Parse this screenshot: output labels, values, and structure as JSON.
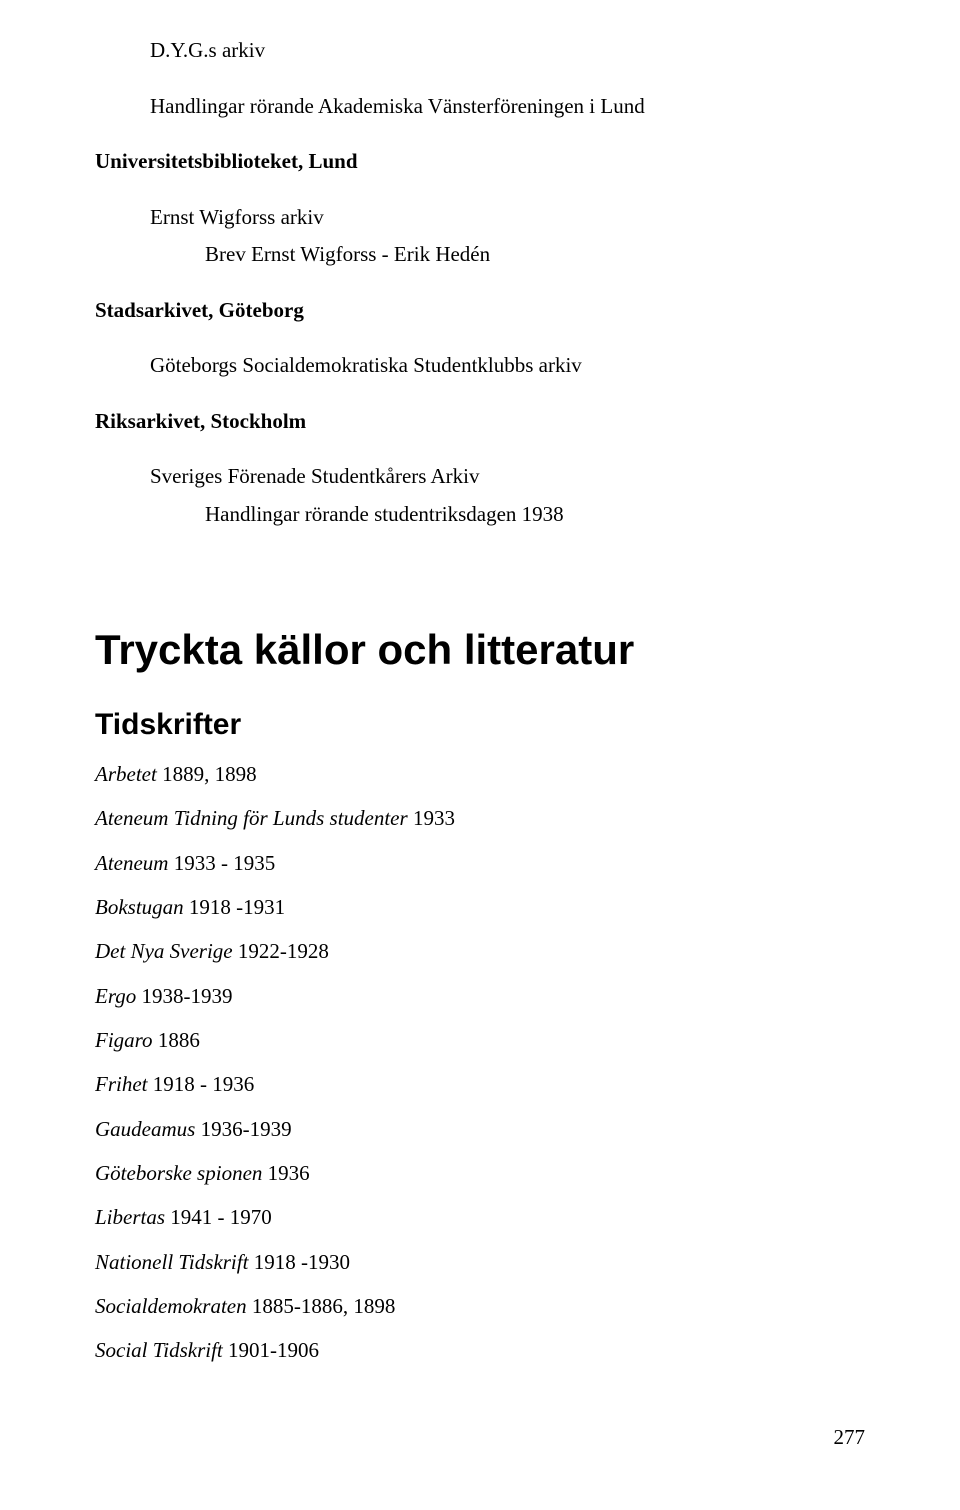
{
  "top": {
    "archive1": "D.Y.G.s arkiv",
    "item1": "Handlingar rörande Akademiska Vänsterföreningen i Lund",
    "heading1": "Universitetsbiblioteket, Lund",
    "item2a": "Ernst Wigforss arkiv",
    "item2b": "Brev Ernst Wigforss - Erik Hedén",
    "heading2": "Stadsarkivet, Göteborg",
    "item3": "Göteborgs Socialdemokratiska Studentklubbs arkiv",
    "heading3": "Riksarkivet, Stockholm",
    "item4a": "Sveriges Förenade Studentkårers Arkiv",
    "item4b": "Handlingar rörande studentriksdagen 1938"
  },
  "section": {
    "title": "Tryckta källor och litteratur",
    "subtitle": "Tidskrifter"
  },
  "periodicals": [
    {
      "title": "Arbetet",
      "rest": "  1889, 1898"
    },
    {
      "title": "Ateneum Tidning för Lunds studenter",
      "rest": " 1933"
    },
    {
      "title": "Ateneum",
      "rest": "  1933 - 1935"
    },
    {
      "title": "Bokstugan",
      "rest": " 1918 -1931"
    },
    {
      "title": "Det Nya Sverige",
      "rest": " 1922-1928"
    },
    {
      "title": "Ergo",
      "rest": " 1938-1939"
    },
    {
      "title": "Figaro",
      "rest": " 1886"
    },
    {
      "title": "Frihet",
      "rest": "  1918 - 1936"
    },
    {
      "title": "Gaudeamus",
      "rest": " 1936-1939"
    },
    {
      "title": "Göteborske spionen",
      "rest": "  1936"
    },
    {
      "title": "Libertas",
      "rest": " 1941 - 1970"
    },
    {
      "title": "Nationell Tidskrift",
      "rest": "  1918 -1930"
    },
    {
      "title": "Socialdemokraten",
      "rest": " 1885-1886, 1898"
    },
    {
      "title": "Social Tidskrift",
      "rest": " 1901-1906"
    }
  ],
  "pagenum": "277"
}
